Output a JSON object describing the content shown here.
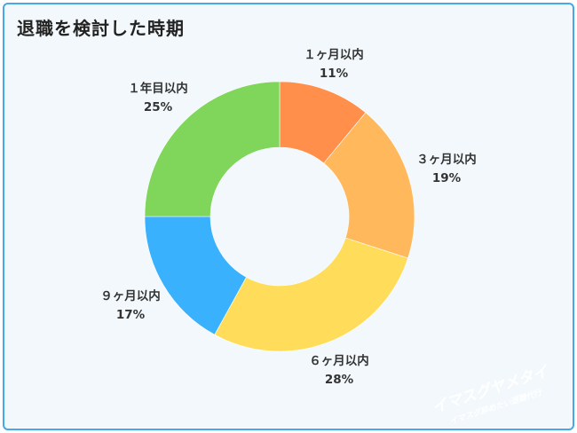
{
  "title": "退職を検討した時期",
  "watermark": {
    "line1": "イマスグヤメタイ",
    "line2": "イマスグ辞めたい退職代行"
  },
  "chart_data": {
    "type": "pie",
    "donut": true,
    "title": "退職を検討した時期",
    "slices": [
      {
        "label": "１ヶ月以内",
        "value": 11,
        "value_label": "11%",
        "color": "#ff8f4a"
      },
      {
        "label": "３ヶ月以内",
        "value": 19,
        "value_label": "19%",
        "color": "#ffb85c"
      },
      {
        "label": "６ヶ月以内",
        "value": 28,
        "value_label": "28%",
        "color": "#ffdd5a"
      },
      {
        "label": "９ヶ月以内",
        "value": 17,
        "value_label": "17%",
        "color": "#3ab1fc"
      },
      {
        "label": "１年目以内",
        "value": 25,
        "value_label": "25%",
        "color": "#7fd65a"
      }
    ]
  }
}
